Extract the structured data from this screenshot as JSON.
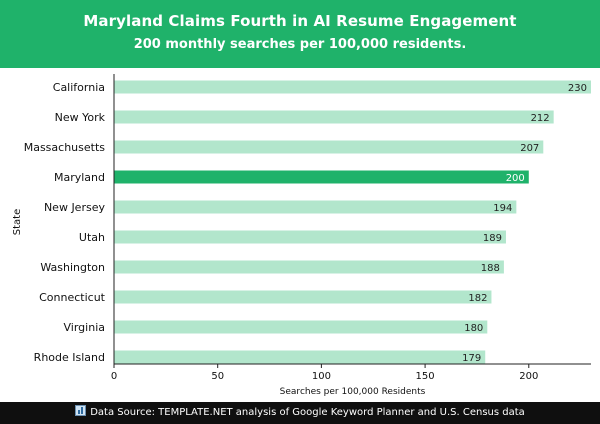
{
  "header": {
    "title": "Maryland Claims Fourth in AI Resume Engagement",
    "subtitle": "200 monthly searches per 100,000 residents."
  },
  "footer": {
    "source_text": "Data Source: TEMPLATE.NET analysis of Google Keyword Planner and U.S. Census data"
  },
  "colors": {
    "header_bg": "#1fb26a",
    "bar_default": "#b2e6cc",
    "bar_highlight": "#1fb26a",
    "footer_bg": "#0f0f0f"
  },
  "chart_data": {
    "type": "bar",
    "orientation": "horizontal",
    "categories": [
      "California",
      "New York",
      "Massachusetts",
      "Maryland",
      "New Jersey",
      "Utah",
      "Washington",
      "Connecticut",
      "Virginia",
      "Rhode Island"
    ],
    "values": [
      230,
      212,
      207,
      200,
      194,
      189,
      188,
      182,
      180,
      179
    ],
    "highlight": "Maryland",
    "xlabel": "Searches per 100,000 Residents",
    "ylabel": "State",
    "xlim": [
      0,
      230
    ],
    "xticks": [
      0,
      50,
      100,
      150,
      200
    ],
    "grid": false,
    "data_labels": true
  }
}
